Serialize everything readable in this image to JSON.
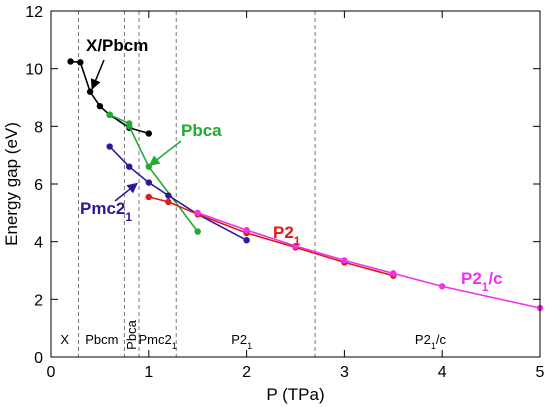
{
  "chart_data": {
    "type": "line",
    "xlabel": "P (TPa)",
    "ylabel": "Energy gap (eV)",
    "xlim": [
      0,
      5
    ],
    "ylim": [
      0,
      12
    ],
    "xticks": [
      "0",
      "1",
      "2",
      "3",
      "4",
      "5"
    ],
    "yticks": [
      "0",
      "2",
      "4",
      "6",
      "8",
      "10",
      "12"
    ],
    "grid": false,
    "series": [
      {
        "name": "X/Pbcm",
        "color": "#000000",
        "x": [
          0.2,
          0.3,
          0.4,
          0.5,
          0.6,
          0.8,
          1.0
        ],
        "y": [
          10.25,
          10.22,
          9.2,
          8.7,
          8.4,
          7.95,
          7.75
        ]
      },
      {
        "name": "Pbca",
        "color": "#22aa33",
        "x": [
          0.6,
          0.8,
          0.8,
          1.0,
          1.5
        ],
        "y": [
          8.4,
          8.1,
          8.0,
          6.6,
          4.35
        ]
      },
      {
        "name": "Pmc2₁",
        "color": "#2a1a9a",
        "x": [
          0.6,
          0.8,
          1.0,
          1.2,
          1.5,
          2.0
        ],
        "y": [
          7.3,
          6.6,
          6.05,
          5.6,
          4.95,
          4.05
        ]
      },
      {
        "name": "P2₁",
        "color": "#e01818",
        "x": [
          1.0,
          1.2,
          1.5,
          2.0,
          2.5,
          3.0,
          3.5
        ],
        "y": [
          5.55,
          5.38,
          4.95,
          4.3,
          3.8,
          3.28,
          2.82
        ]
      },
      {
        "name": "P2₁/c",
        "color": "#ee33ee",
        "x": [
          1.5,
          2.0,
          2.5,
          3.0,
          3.5,
          4.0,
          5.0
        ],
        "y": [
          5.0,
          4.4,
          3.85,
          3.35,
          2.9,
          2.45,
          1.7
        ]
      }
    ],
    "phase_boundaries": [
      0.28,
      0.75,
      0.9,
      1.28,
      2.7
    ],
    "phase_labels": [
      {
        "text": "X",
        "x": 0.14,
        "rotated": false
      },
      {
        "text": "Pbcm",
        "x": 0.52,
        "rotated": false
      },
      {
        "text": "Pbca",
        "x": 0.83,
        "rotated": true
      },
      {
        "text": "Pmc2",
        "sub": "1",
        "x": 1.09,
        "rotated": false
      },
      {
        "text": "P2",
        "sub": "1",
        "x": 1.95,
        "rotated": false
      },
      {
        "text": "P2",
        "sub": "1",
        "tail": "/c",
        "x": 3.88,
        "rotated": false
      }
    ],
    "annotations": [
      {
        "key": "xpbcm",
        "text": "X/Pbcm",
        "color": "#000000",
        "target": [
          0.42,
          9.3
        ]
      },
      {
        "key": "pbca",
        "text": "Pbca",
        "color": "#22aa33",
        "target": [
          1.01,
          6.65
        ]
      },
      {
        "key": "pmc21",
        "text": "Pmc2",
        "sub": "1",
        "color": "#2a1a9a",
        "target": [
          0.88,
          6.02
        ]
      },
      {
        "key": "p21",
        "text": "P2",
        "sub": "1",
        "color": "#e01818"
      },
      {
        "key": "p21c",
        "text": "P2",
        "sub": "1",
        "tail": "/c",
        "color": "#ee33ee"
      }
    ]
  }
}
